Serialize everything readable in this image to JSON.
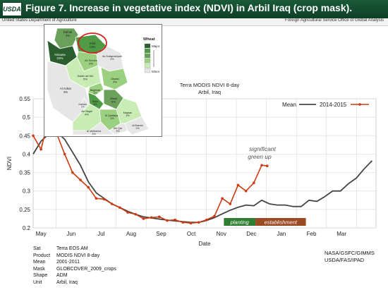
{
  "header": {
    "logo_text": "USDA",
    "title": "Figure 7.  Increase in vegetative index (NDVI) in Arbil Iraq (crop mask).",
    "agency_left": "United States Department of Agriculture",
    "agency_right": "Foreign Agricultural Service   Office of Global Analysis"
  },
  "chart_title": {
    "line1": "Terra MODIS NDVI 8-day",
    "line2": "Arbil, Iraq"
  },
  "map": {
    "legend_title": "Wheat",
    "legend_major": "Major",
    "legend_minor": "Minor",
    "provinces": [
      {
        "name": "Dahuk",
        "pct": "4%"
      },
      {
        "name": "Ninawa",
        "pct": "23%"
      },
      {
        "name": "Arbil",
        "pct": "13%"
      },
      {
        "name": "At-Ta'mim",
        "pct": "9%"
      },
      {
        "name": "As-Sulaymaniyah",
        "pct": "2%"
      },
      {
        "name": "Salah ad Din",
        "pct": "5%"
      },
      {
        "name": "Diyala",
        "pct": "9%"
      },
      {
        "name": "Al Anbar",
        "pct": "3%"
      },
      {
        "name": "Baghdad",
        "pct": "2%"
      },
      {
        "name": "Wasit",
        "pct": "8%"
      },
      {
        "name": "Babil",
        "pct": "4%"
      },
      {
        "name": "Karbala",
        "pct": "1%"
      },
      {
        "name": "An Najaf",
        "pct": "4%"
      },
      {
        "name": "Al Qadisiyah",
        "pct": "5%"
      },
      {
        "name": "Maysan",
        "pct": "3%"
      },
      {
        "name": "Dhi Qar",
        "pct": "3%"
      },
      {
        "name": "Al Basrah",
        "pct": "1%"
      },
      {
        "name": "Al Muthanna",
        "pct": "1%"
      }
    ]
  },
  "chart_data": {
    "type": "line",
    "xlabel": "Date",
    "ylabel": "NDVI",
    "ylim": [
      0.2,
      0.55
    ],
    "yticks": [
      "0.2",
      "0.25",
      "0.3",
      "0.35",
      "0.4",
      "0.45",
      "0.5",
      "0.55"
    ],
    "months": [
      "May",
      "Jun",
      "Jul",
      "Aug",
      "Sep",
      "Oct",
      "Nov",
      "Dec",
      "Jan",
      "Feb",
      "Mar"
    ],
    "grid": true,
    "legend_position": "top-right",
    "series": [
      {
        "name": "Mean",
        "color": "#444444",
        "x": [
          0,
          1,
          2,
          3,
          4,
          5,
          6,
          7,
          8,
          9,
          10,
          11,
          12,
          13,
          14,
          15,
          16,
          17,
          18,
          19,
          20,
          21,
          22,
          23,
          24,
          25,
          26,
          27,
          28,
          29,
          30,
          31,
          32,
          33,
          34,
          35,
          36,
          37,
          38,
          39,
          40,
          41,
          42,
          43
        ],
        "values": [
          0.4,
          0.435,
          0.455,
          0.46,
          0.44,
          0.405,
          0.37,
          0.325,
          0.295,
          0.28,
          0.265,
          0.255,
          0.245,
          0.237,
          0.23,
          0.227,
          0.224,
          0.221,
          0.219,
          0.217,
          0.215,
          0.215,
          0.22,
          0.228,
          0.238,
          0.248,
          0.256,
          0.262,
          0.26,
          0.275,
          0.265,
          0.262,
          0.262,
          0.258,
          0.258,
          0.275,
          0.272,
          0.285,
          0.3,
          0.3,
          0.32,
          0.335,
          0.36,
          0.382
        ]
      },
      {
        "name": "2014-2015",
        "color": "#cc3a12",
        "x": [
          0,
          1,
          2,
          3,
          4,
          5,
          6,
          7,
          8,
          9,
          10,
          11,
          12,
          13,
          14,
          15,
          16,
          17,
          18,
          19,
          20,
          21,
          22,
          23,
          24,
          25,
          26,
          27,
          28,
          29
        ],
        "values": [
          0.45,
          0.413,
          0.5,
          0.455,
          0.4,
          0.35,
          0.33,
          0.31,
          0.28,
          0.278,
          0.265,
          0.255,
          0.242,
          0.237,
          0.225,
          0.228,
          0.23,
          0.22,
          0.222,
          0.215,
          0.213,
          0.215,
          0.222,
          0.232,
          0.28,
          0.265,
          0.316,
          0.3,
          0.322,
          0.37
        ]
      }
    ],
    "extra_point": {
      "x": 29.7,
      "value": 0.368
    },
    "annotations": {
      "note": [
        "significant",
        "green up"
      ],
      "planting": "planting",
      "establishment": "establishment"
    }
  },
  "footer": {
    "meta": [
      {
        "k": "Sat",
        "v": "Terra EOS AM"
      },
      {
        "k": "Product",
        "v": "MODIS NDVI 8-day"
      },
      {
        "k": "Mean",
        "v": "2001-2011"
      },
      {
        "k": "Mask",
        "v": "GLOBCOVER_2009_crops"
      },
      {
        "k": "Shape",
        "v": "ADM"
      },
      {
        "k": "Unit",
        "v": "Arbil, Iraq"
      }
    ],
    "credit": [
      "NASA/GSFC/GIMMS",
      "USDA/FAS/IPAD"
    ]
  }
}
